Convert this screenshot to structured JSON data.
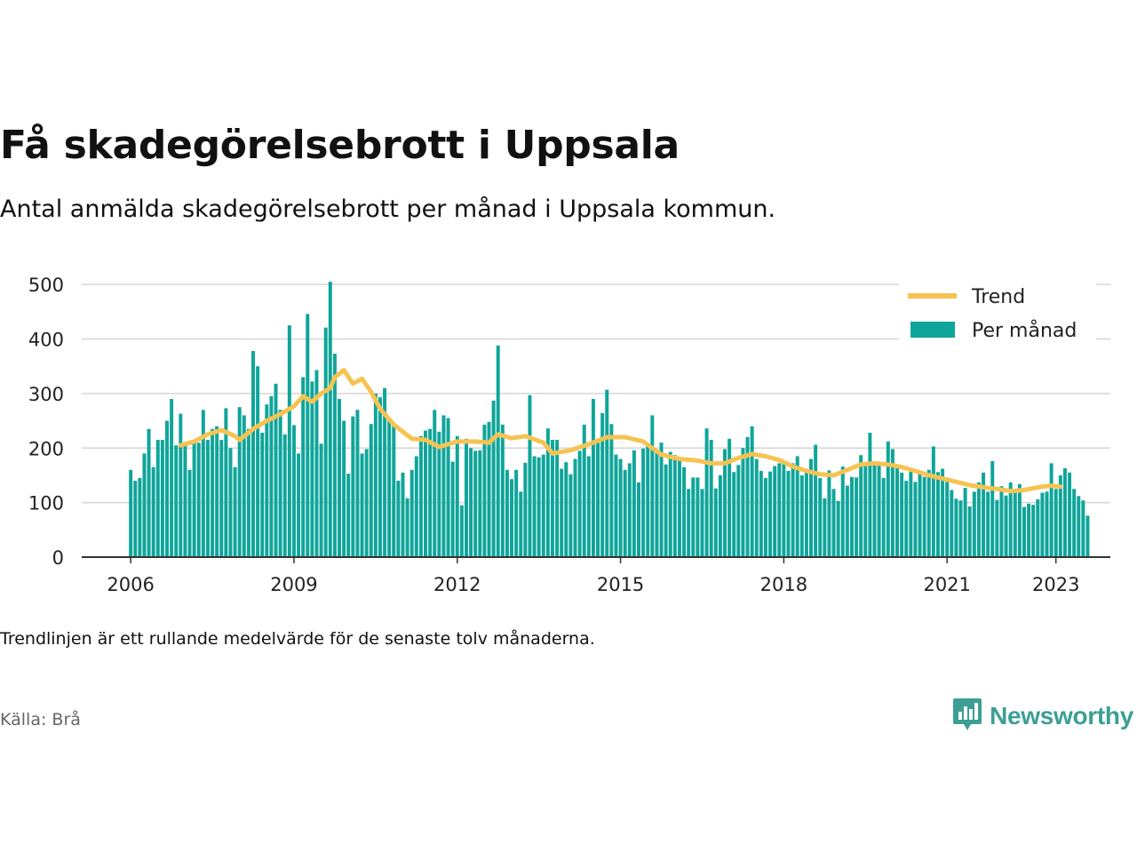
{
  "header": {
    "title": "Få skadegörelsebrott i Uppsala",
    "subtitle": "Antal anmälda skadegörelsebrott per månad i Uppsala kommun."
  },
  "footer": {
    "note": "Trendlinjen är ett rullande medelvärde för de senaste tolv månaderna.",
    "source": "Källa: Brå",
    "brand": "Newsworthy",
    "brand_icon": "bar-chart-speech-bubble-icon"
  },
  "colors": {
    "bars": "#0fa59a",
    "trend": "#f6c353",
    "grid": "#d6d6d6",
    "axis": "#333333",
    "brand": "#3c9f95"
  },
  "chart_data": {
    "type": "bar",
    "y_ticks": [
      0,
      100,
      200,
      300,
      400,
      500
    ],
    "x_ticks": [
      2006,
      2009,
      2012,
      2015,
      2018,
      2021,
      2023
    ],
    "ylim": [
      0,
      510
    ],
    "xlim": [
      2005.1,
      2024.0
    ],
    "grid": true,
    "legend_position": "top-right",
    "legend": [
      {
        "label": "Trend",
        "kind": "line"
      },
      {
        "label": "Per månad",
        "kind": "bar"
      }
    ],
    "series": [
      {
        "name": "Per månad",
        "kind": "bar",
        "start": "2006-01",
        "values": [
          160,
          140,
          145,
          190,
          235,
          165,
          215,
          215,
          250,
          290,
          205,
          263,
          205,
          160,
          215,
          210,
          270,
          215,
          235,
          240,
          215,
          273,
          200,
          165,
          275,
          260,
          235,
          378,
          350,
          228,
          280,
          295,
          318,
          270,
          225,
          425,
          242,
          190,
          330,
          446,
          322,
          343,
          208,
          421,
          505,
          373,
          290,
          250,
          153,
          258,
          270,
          190,
          198,
          244,
          300,
          293,
          310,
          250,
          240,
          140,
          155,
          108,
          160,
          185,
          222,
          232,
          235,
          270,
          230,
          260,
          255,
          175,
          222,
          95,
          217,
          200,
          195,
          196,
          243,
          248,
          287,
          388,
          243,
          160,
          143,
          160,
          120,
          173,
          297,
          185,
          183,
          188,
          236,
          215,
          215,
          162,
          174,
          152,
          180,
          195,
          243,
          185,
          290,
          210,
          264,
          307,
          244,
          188,
          180,
          160,
          172,
          196,
          137,
          199,
          207,
          260,
          193,
          210,
          170,
          193,
          187,
          180,
          165,
          125,
          146,
          146,
          125,
          236,
          215,
          126,
          150,
          198,
          217,
          156,
          169,
          200,
          220,
          240,
          180,
          158,
          145,
          157,
          167,
          172,
          173,
          158,
          172,
          185,
          150,
          155,
          180,
          206,
          145,
          108,
          159,
          125,
          103,
          166,
          131,
          147,
          146,
          187,
          170,
          228,
          176,
          175,
          145,
          212,
          198,
          166,
          155,
          140,
          163,
          138,
          158,
          147,
          160,
          203,
          156,
          162,
          138,
          123,
          107,
          104,
          127,
          93,
          120,
          137,
          155,
          120,
          176,
          105,
          130,
          113,
          137,
          120,
          134,
          92,
          98,
          96,
          106,
          118,
          120,
          172,
          125,
          150,
          163,
          155,
          125,
          112,
          104,
          76
        ]
      },
      {
        "name": "Trend",
        "kind": "line",
        "points": [
          [
            "2006-12",
            205
          ],
          [
            "2007-03",
            212
          ],
          [
            "2007-06",
            225
          ],
          [
            "2007-09",
            233
          ],
          [
            "2007-12",
            222
          ],
          [
            "2008-01",
            215
          ],
          [
            "2008-04",
            235
          ],
          [
            "2008-07",
            250
          ],
          [
            "2008-10",
            262
          ],
          [
            "2009-01",
            277
          ],
          [
            "2009-03",
            295
          ],
          [
            "2009-05",
            285
          ],
          [
            "2009-07",
            300
          ],
          [
            "2009-09",
            310
          ],
          [
            "2009-10",
            330
          ],
          [
            "2009-12",
            343
          ],
          [
            "2010-02",
            318
          ],
          [
            "2010-04",
            327
          ],
          [
            "2010-06",
            303
          ],
          [
            "2010-08",
            272
          ],
          [
            "2010-11",
            243
          ],
          [
            "2011-03",
            217
          ],
          [
            "2011-06",
            215
          ],
          [
            "2011-09",
            202
          ],
          [
            "2012-01",
            212
          ],
          [
            "2012-05",
            212
          ],
          [
            "2012-08",
            210
          ],
          [
            "2012-10",
            225
          ],
          [
            "2013-01",
            218
          ],
          [
            "2013-04",
            222
          ],
          [
            "2013-08",
            210
          ],
          [
            "2013-10",
            190
          ],
          [
            "2014-02",
            196
          ],
          [
            "2014-06",
            207
          ],
          [
            "2014-10",
            220
          ],
          [
            "2015-02",
            220
          ],
          [
            "2015-06",
            212
          ],
          [
            "2015-10",
            188
          ],
          [
            "2016-02",
            180
          ],
          [
            "2016-06",
            177
          ],
          [
            "2016-09",
            172
          ],
          [
            "2016-12",
            172
          ],
          [
            "2017-03",
            182
          ],
          [
            "2017-06",
            189
          ],
          [
            "2017-09",
            185
          ],
          [
            "2017-12",
            178
          ],
          [
            "2018-03",
            166
          ],
          [
            "2018-06",
            158
          ],
          [
            "2018-09",
            152
          ],
          [
            "2018-12",
            150
          ],
          [
            "2019-03",
            160
          ],
          [
            "2019-06",
            170
          ],
          [
            "2019-09",
            172
          ],
          [
            "2019-12",
            170
          ],
          [
            "2020-03",
            165
          ],
          [
            "2020-06",
            158
          ],
          [
            "2020-09",
            150
          ],
          [
            "2020-12",
            144
          ],
          [
            "2021-03",
            138
          ],
          [
            "2021-06",
            132
          ],
          [
            "2021-09",
            128
          ],
          [
            "2021-12",
            125
          ],
          [
            "2022-03",
            121
          ],
          [
            "2022-06",
            123
          ],
          [
            "2022-09",
            128
          ],
          [
            "2022-12",
            131
          ],
          [
            "2023-02",
            129
          ]
        ]
      }
    ]
  }
}
